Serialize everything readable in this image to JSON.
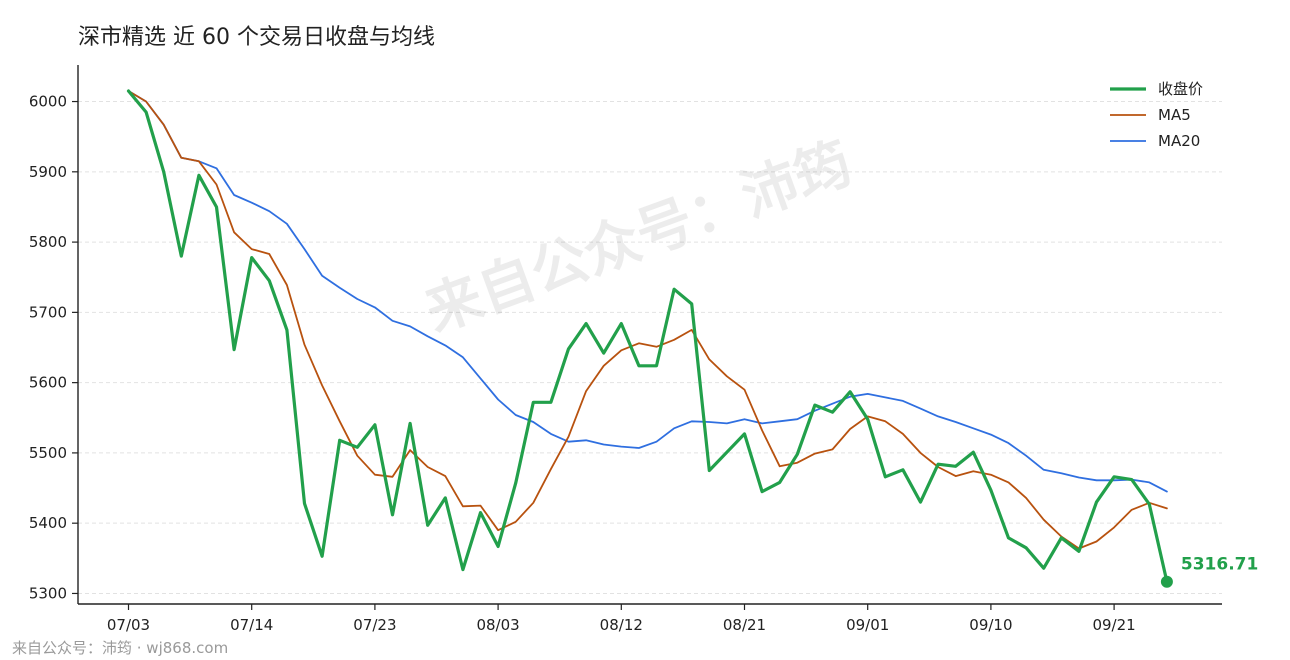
{
  "chart_data": {
    "type": "line",
    "title": "深市精选 近 60 个交易日收盘与均线",
    "xlabel": "",
    "ylabel": "",
    "ylim": [
      5285,
      6052
    ],
    "y_ticks": [
      5300,
      5400,
      5500,
      5600,
      5700,
      5800,
      5900,
      6000
    ],
    "x_ticks": [
      {
        "index": 0,
        "label": "07/03"
      },
      {
        "index": 7,
        "label": "07/14"
      },
      {
        "index": 14,
        "label": "07/23"
      },
      {
        "index": 21,
        "label": "08/03"
      },
      {
        "index": 28,
        "label": "08/12"
      },
      {
        "index": 35,
        "label": "08/21"
      },
      {
        "index": 42,
        "label": "09/01"
      },
      {
        "index": 49,
        "label": "09/10"
      },
      {
        "index": 56,
        "label": "09/21"
      }
    ],
    "grid": "horizontal",
    "legend_position": "top-right",
    "last_label": "5316.71",
    "series": [
      {
        "name": "收盘价",
        "color": "#22a04b",
        "values": [
          6015,
          5985,
          5900,
          5780,
          5895,
          5850,
          5647,
          5778,
          5745,
          5675,
          5428,
          5353,
          5518,
          5508,
          5540,
          5412,
          5542,
          5397,
          5436,
          5334,
          5415,
          5367,
          5457,
          5572,
          5572,
          5648,
          5684,
          5642,
          5684,
          5624,
          5624,
          5733,
          5712,
          5475,
          5501,
          5527,
          5445,
          5458,
          5498,
          5568,
          5558,
          5587,
          5548,
          5466,
          5476,
          5430,
          5484,
          5481,
          5501,
          5447,
          5379,
          5365,
          5336,
          5379,
          5360,
          5430,
          5466,
          5462,
          5427,
          5316.71
        ]
      },
      {
        "name": "MA5",
        "color": "#b8520f",
        "values": [
          6015,
          6000,
          5967,
          5920,
          5915,
          5882,
          5814,
          5790,
          5783,
          5739,
          5654,
          5596,
          5545,
          5496,
          5469,
          5466,
          5504,
          5480,
          5467,
          5424,
          5425,
          5390,
          5402,
          5429,
          5477,
          5523,
          5588,
          5624,
          5646,
          5656,
          5651,
          5661,
          5675,
          5633,
          5609,
          5590,
          5532,
          5481,
          5486,
          5499,
          5505,
          5534,
          5552,
          5545,
          5527,
          5500,
          5480,
          5467,
          5474,
          5469,
          5458,
          5436,
          5405,
          5381,
          5364,
          5374,
          5394,
          5419,
          5429,
          5421
        ]
      },
      {
        "name": "MA20",
        "color": "#2f6fe0",
        "values": [
          6015,
          6000,
          5967,
          5920,
          5915,
          5905,
          5867,
          5856,
          5844,
          5826,
          5790,
          5752,
          5735,
          5719,
          5707,
          5688,
          5680,
          5666,
          5653,
          5636,
          5606,
          5576,
          5554,
          5544,
          5527,
          5516,
          5518,
          5512,
          5509,
          5507,
          5516,
          5535,
          5545,
          5544,
          5542,
          5548,
          5542,
          5545,
          5548,
          5560,
          5570,
          5580,
          5584,
          5579,
          5574,
          5563,
          5552,
          5544,
          5535,
          5526,
          5514,
          5496,
          5476,
          5471,
          5465,
          5461,
          5461,
          5462,
          5458,
          5445
        ]
      }
    ]
  },
  "watermark": "来自公众号：沛筠",
  "footer": "来自公众号：沛筠 · wj868.com"
}
